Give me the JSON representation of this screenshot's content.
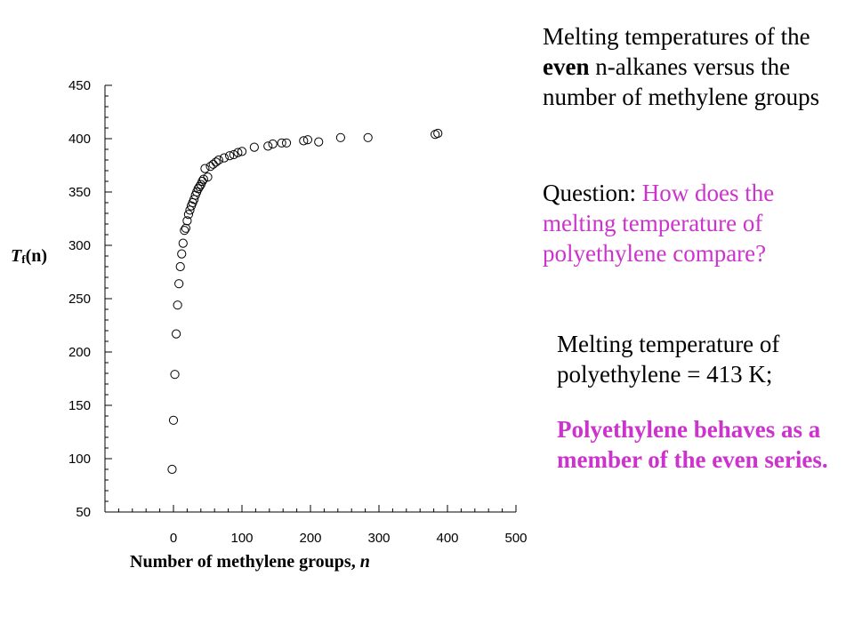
{
  "text": {
    "p1_a": "Melting temperatures of the ",
    "p1_even": "even",
    "p1_b": " n-alkanes versus the number of methylene groups",
    "p2_q": "Question:",
    "p2_text": "How does the melting temperature of polyethylene compare?",
    "p3": "Melting temperature of polyethylene = 413 K;",
    "p4": "Polyethylene behaves as a member of the even series."
  },
  "colors": {
    "accent": "#cc33cc",
    "text": "#000000"
  },
  "chart_data": {
    "type": "scatter",
    "xlabel_main": "Number of methylene groups, ",
    "xlabel_var": "n",
    "ylabel_T": "T",
    "ylabel_sub": "f",
    "ylabel_rest": "(n)",
    "xlim": [
      -100,
      500
    ],
    "ylim": [
      50,
      450
    ],
    "x_ticks": [
      0,
      100,
      200,
      300,
      400,
      500
    ],
    "y_ticks": [
      50,
      100,
      150,
      200,
      250,
      300,
      350,
      400,
      450
    ],
    "marker": "open-circle",
    "points": [
      [
        -2,
        90
      ],
      [
        0,
        136
      ],
      [
        2,
        179
      ],
      [
        4,
        217
      ],
      [
        6,
        244
      ],
      [
        8,
        264
      ],
      [
        10,
        280
      ],
      [
        12,
        292
      ],
      [
        14,
        302
      ],
      [
        16,
        314
      ],
      [
        18,
        316
      ],
      [
        20,
        323
      ],
      [
        22,
        329
      ],
      [
        24,
        333
      ],
      [
        26,
        337
      ],
      [
        28,
        340
      ],
      [
        30,
        343
      ],
      [
        32,
        347
      ],
      [
        34,
        350
      ],
      [
        36,
        353
      ],
      [
        38,
        355
      ],
      [
        40,
        357
      ],
      [
        42,
        360
      ],
      [
        44,
        362
      ],
      [
        46,
        372
      ],
      [
        50,
        364
      ],
      [
        54,
        374
      ],
      [
        58,
        376
      ],
      [
        62,
        378
      ],
      [
        66,
        380
      ],
      [
        74,
        382
      ],
      [
        82,
        384
      ],
      [
        88,
        385
      ],
      [
        94,
        387
      ],
      [
        100,
        388
      ],
      [
        118,
        392
      ],
      [
        138,
        393
      ],
      [
        145,
        395
      ],
      [
        158,
        396
      ],
      [
        165,
        396
      ],
      [
        190,
        398
      ],
      [
        196,
        399
      ],
      [
        212,
        397
      ],
      [
        244,
        401
      ],
      [
        284,
        401
      ],
      [
        382,
        404
      ],
      [
        386,
        405
      ]
    ]
  }
}
